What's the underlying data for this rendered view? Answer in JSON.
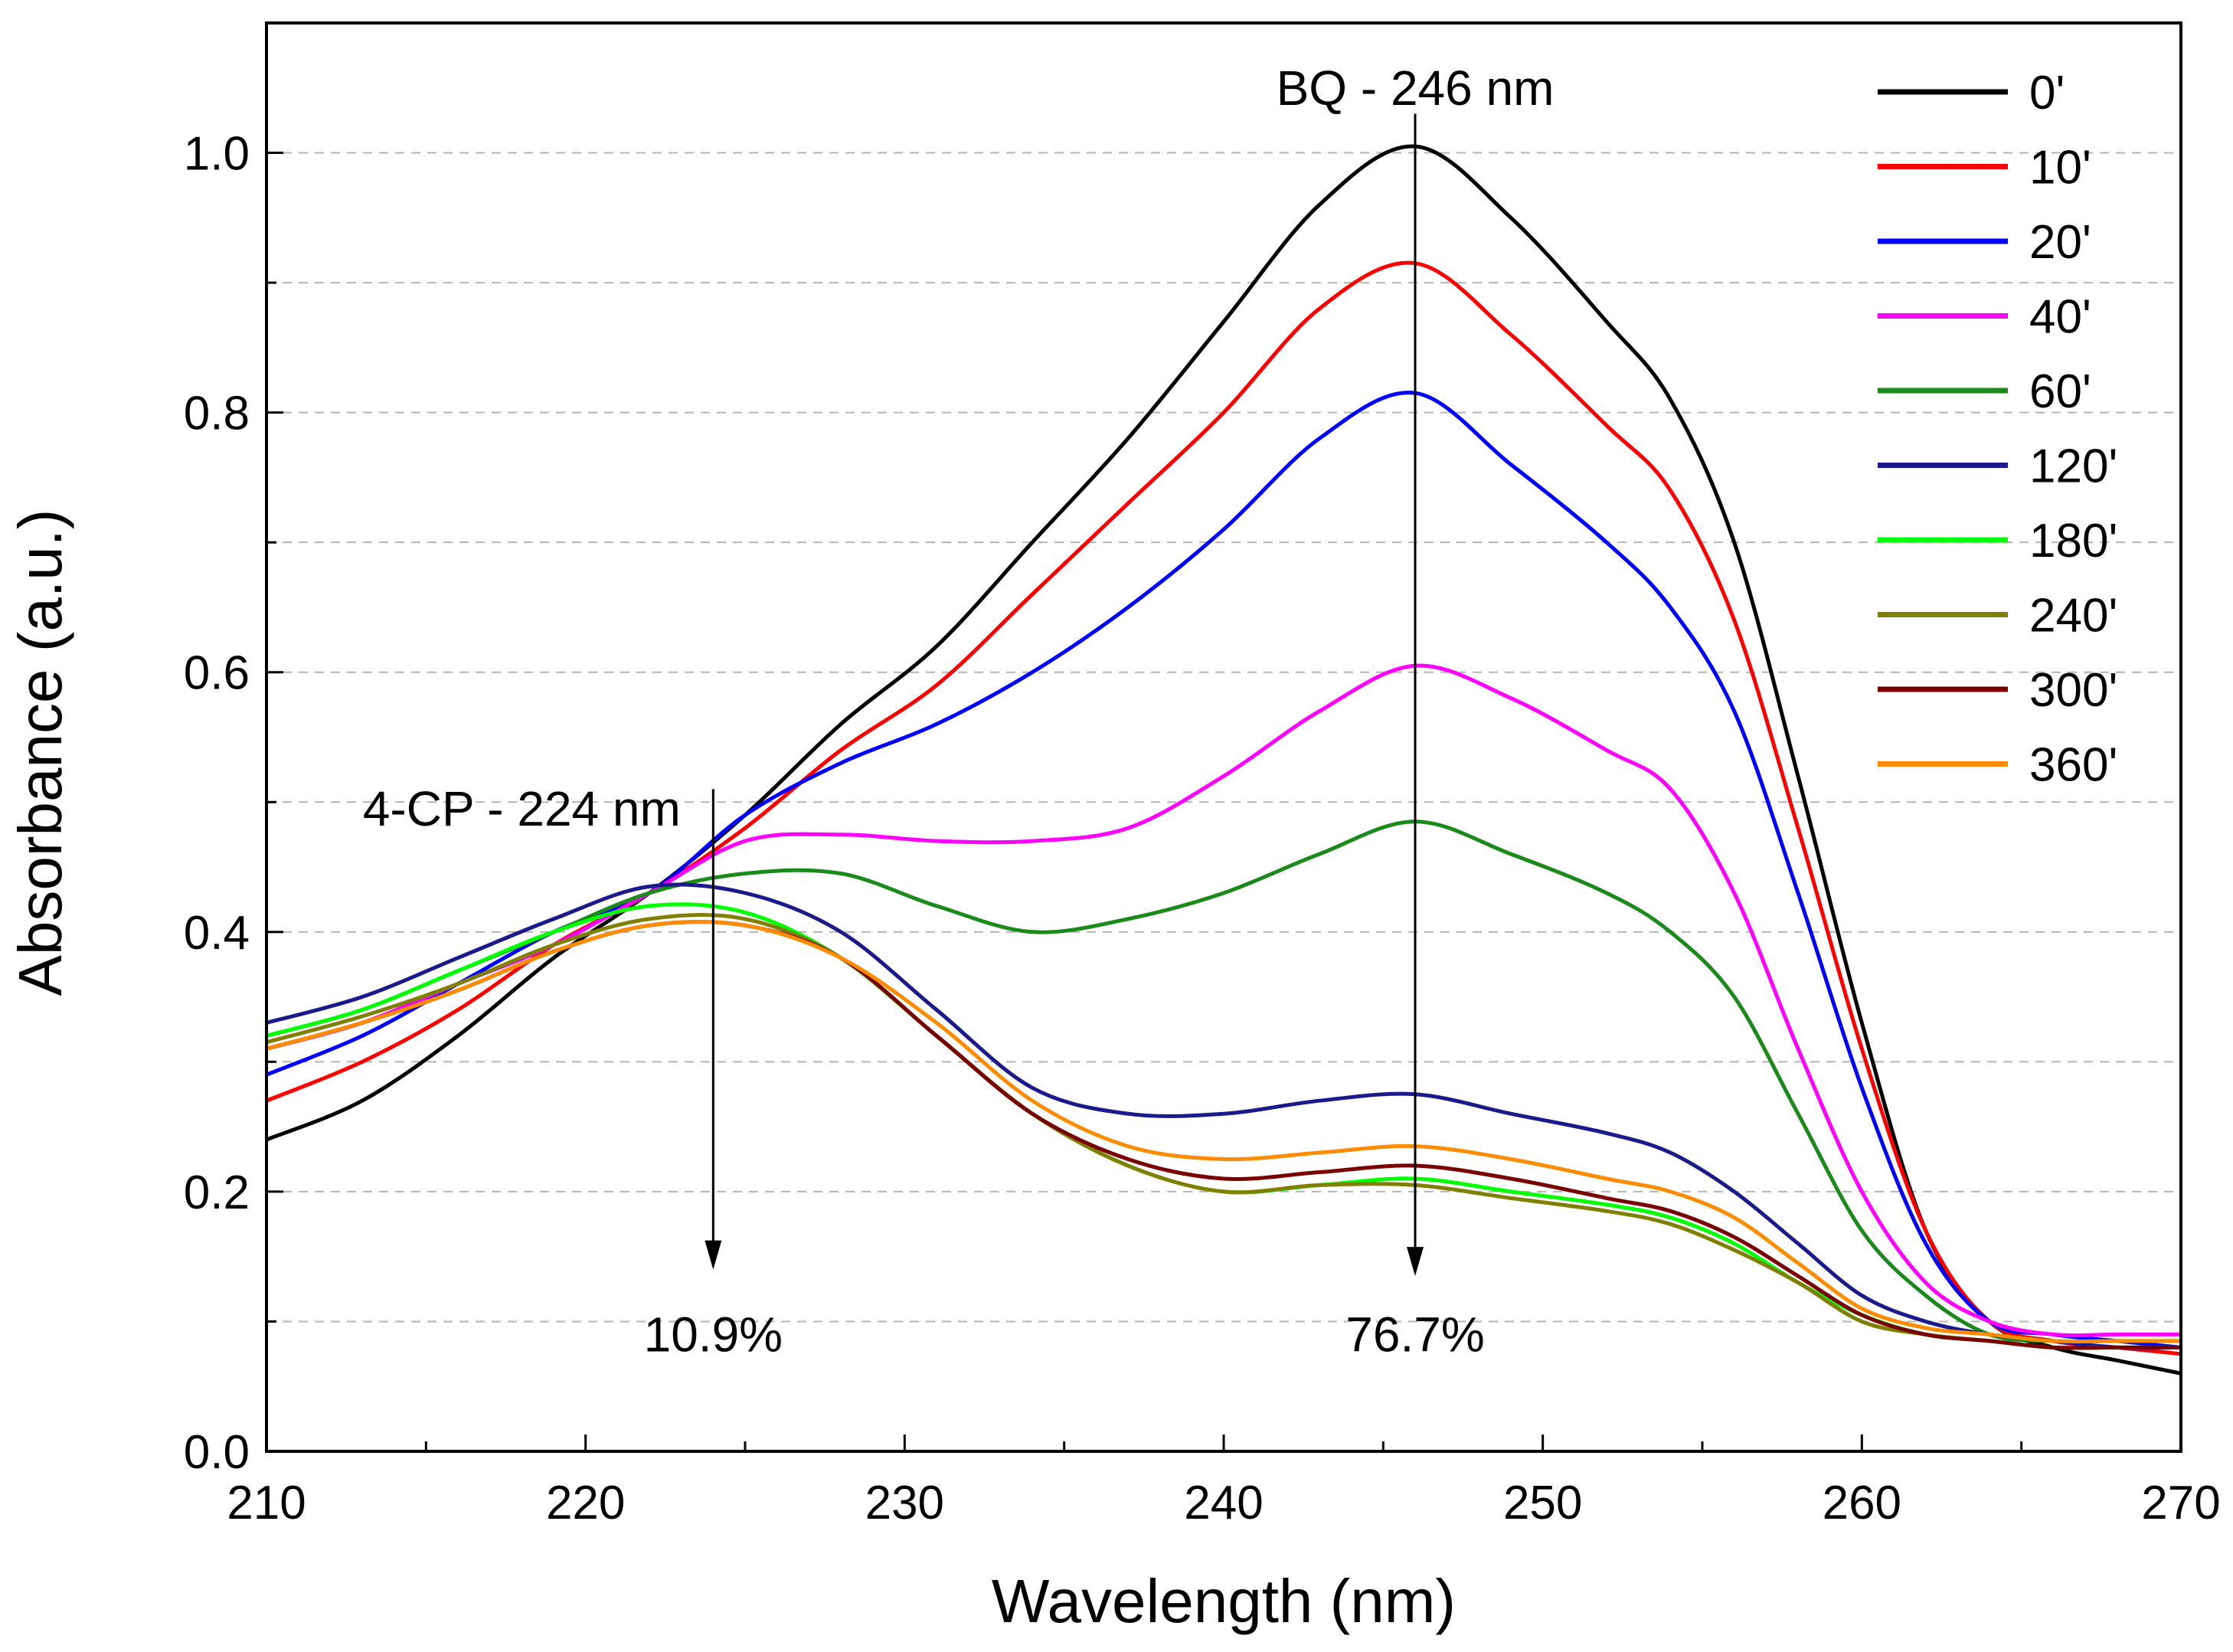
{
  "chart_data": {
    "type": "line",
    "title": "",
    "xlabel": "Wavelength (nm)",
    "ylabel": "Absorbance (a.u.)",
    "xlim": [
      210,
      270
    ],
    "ylim": [
      0.0,
      1.1
    ],
    "xticks": [
      210,
      220,
      230,
      240,
      250,
      260,
      270
    ],
    "xtick_labels": [
      "210",
      "220",
      "230",
      "240",
      "250",
      "260",
      "270"
    ],
    "yticks": [
      0.0,
      0.2,
      0.4,
      0.6,
      0.8,
      1.0
    ],
    "ytick_labels": [
      "0.0",
      "0.2",
      "0.4",
      "0.6",
      "0.8",
      "1.0"
    ],
    "grid": "horizontal dashed",
    "legend_position": "top-right",
    "series": [
      {
        "name": "0'",
        "color": "#000000",
        "x": [
          210,
          213,
          216,
          219,
          222,
          225,
          228,
          231,
          234,
          237,
          240,
          243,
          246,
          249,
          252,
          254,
          256,
          258,
          260,
          262,
          264,
          266,
          268,
          270
        ],
        "y": [
          0.24,
          0.27,
          0.32,
          0.38,
          0.43,
          0.49,
          0.56,
          0.62,
          0.7,
          0.78,
          0.87,
          0.96,
          1.005,
          0.95,
          0.87,
          0.81,
          0.7,
          0.52,
          0.33,
          0.17,
          0.1,
          0.08,
          0.07,
          0.06
        ]
      },
      {
        "name": "10'",
        "color": "#ff0000",
        "x": [
          210,
          213,
          216,
          219,
          222,
          225,
          228,
          231,
          234,
          237,
          240,
          243,
          246,
          249,
          252,
          254,
          256,
          258,
          260,
          262,
          264,
          266,
          268,
          270
        ],
        "y": [
          0.27,
          0.3,
          0.34,
          0.39,
          0.43,
          0.48,
          0.54,
          0.59,
          0.66,
          0.73,
          0.8,
          0.88,
          0.915,
          0.86,
          0.79,
          0.74,
          0.64,
          0.48,
          0.31,
          0.17,
          0.1,
          0.085,
          0.08,
          0.075
        ]
      },
      {
        "name": "20'",
        "color": "#0000ff",
        "x": [
          210,
          213,
          216,
          219,
          222,
          225,
          228,
          231,
          234,
          237,
          240,
          243,
          246,
          249,
          252,
          254,
          256,
          258,
          260,
          262,
          264,
          266,
          268,
          270
        ],
        "y": [
          0.29,
          0.32,
          0.36,
          0.4,
          0.43,
          0.49,
          0.53,
          0.56,
          0.6,
          0.65,
          0.71,
          0.78,
          0.815,
          0.76,
          0.7,
          0.65,
          0.57,
          0.43,
          0.28,
          0.16,
          0.1,
          0.09,
          0.085,
          0.08
        ]
      },
      {
        "name": "40'",
        "color": "#ff00ff",
        "x": [
          210,
          213,
          216,
          219,
          222,
          225,
          228,
          231,
          234,
          237,
          240,
          243,
          246,
          249,
          252,
          254,
          256,
          258,
          260,
          262,
          264,
          266,
          268,
          270
        ],
        "y": [
          0.31,
          0.33,
          0.36,
          0.39,
          0.43,
          0.47,
          0.475,
          0.47,
          0.47,
          0.48,
          0.52,
          0.57,
          0.605,
          0.58,
          0.54,
          0.51,
          0.43,
          0.31,
          0.2,
          0.13,
          0.1,
          0.09,
          0.09,
          0.09
        ]
      },
      {
        "name": "60'",
        "color": "#1a8a1a",
        "x": [
          210,
          213,
          216,
          219,
          222,
          225,
          228,
          231,
          234,
          237,
          240,
          243,
          246,
          249,
          252,
          254,
          256,
          258,
          260,
          262,
          264,
          266,
          268,
          270
        ],
        "y": [
          0.32,
          0.34,
          0.37,
          0.4,
          0.43,
          0.445,
          0.445,
          0.42,
          0.4,
          0.41,
          0.43,
          0.46,
          0.485,
          0.46,
          0.43,
          0.4,
          0.35,
          0.26,
          0.17,
          0.12,
          0.09,
          0.085,
          0.085,
          0.085
        ]
      },
      {
        "name": "120'",
        "color": "#1a1a8c",
        "x": [
          210,
          213,
          216,
          219,
          222,
          225,
          228,
          231,
          234,
          237,
          240,
          243,
          246,
          249,
          252,
          254,
          256,
          258,
          260,
          262,
          264,
          266,
          268,
          270
        ],
        "y": [
          0.33,
          0.35,
          0.38,
          0.41,
          0.435,
          0.43,
          0.4,
          0.34,
          0.28,
          0.26,
          0.26,
          0.27,
          0.275,
          0.26,
          0.245,
          0.23,
          0.2,
          0.16,
          0.12,
          0.1,
          0.09,
          0.085,
          0.08,
          0.08
        ]
      },
      {
        "name": "180'",
        "color": "#00ff00",
        "x": [
          210,
          213,
          216,
          219,
          222,
          225,
          228,
          231,
          234,
          237,
          240,
          243,
          246,
          249,
          252,
          254,
          256,
          258,
          260,
          262,
          264,
          266,
          268,
          270
        ],
        "y": [
          0.32,
          0.34,
          0.37,
          0.4,
          0.42,
          0.415,
          0.38,
          0.32,
          0.26,
          0.22,
          0.2,
          0.205,
          0.21,
          0.2,
          0.19,
          0.18,
          0.16,
          0.13,
          0.105,
          0.09,
          0.085,
          0.08,
          0.08,
          0.08
        ]
      },
      {
        "name": "240'",
        "color": "#808000",
        "x": [
          210,
          213,
          216,
          219,
          222,
          225,
          228,
          231,
          234,
          237,
          240,
          243,
          246,
          249,
          252,
          254,
          256,
          258,
          260,
          262,
          264,
          266,
          268,
          270
        ],
        "y": [
          0.315,
          0.335,
          0.36,
          0.39,
          0.41,
          0.41,
          0.38,
          0.32,
          0.26,
          0.22,
          0.2,
          0.205,
          0.205,
          0.195,
          0.185,
          0.175,
          0.155,
          0.13,
          0.1,
          0.09,
          0.085,
          0.08,
          0.08,
          0.08
        ]
      },
      {
        "name": "300'",
        "color": "#7a0000",
        "x": [
          210,
          213,
          216,
          219,
          222,
          225,
          228,
          231,
          234,
          237,
          240,
          243,
          246,
          249,
          252,
          254,
          256,
          258,
          260,
          262,
          264,
          266,
          268,
          270
        ],
        "y": [
          0.31,
          0.33,
          0.355,
          0.385,
          0.405,
          0.405,
          0.38,
          0.32,
          0.26,
          0.225,
          0.21,
          0.215,
          0.22,
          0.21,
          0.195,
          0.185,
          0.165,
          0.135,
          0.105,
          0.09,
          0.085,
          0.08,
          0.08,
          0.08
        ]
      },
      {
        "name": "360'",
        "color": "#ff8c00",
        "x": [
          210,
          213,
          216,
          219,
          222,
          225,
          228,
          231,
          234,
          237,
          240,
          243,
          246,
          249,
          252,
          254,
          256,
          258,
          260,
          262,
          264,
          266,
          268,
          270
        ],
        "y": [
          0.31,
          0.33,
          0.355,
          0.385,
          0.405,
          0.405,
          0.38,
          0.33,
          0.27,
          0.235,
          0.225,
          0.23,
          0.235,
          0.225,
          0.21,
          0.2,
          0.18,
          0.145,
          0.11,
          0.095,
          0.09,
          0.085,
          0.085,
          0.085
        ]
      }
    ],
    "annotations": [
      {
        "text": "BQ - 246 nm",
        "x": 246,
        "y": 1.05
      },
      {
        "text": "4-CP - 224 nm",
        "x": 218,
        "y": 0.495
      },
      {
        "text": "10.9%",
        "x": 224,
        "y": 0.09
      },
      {
        "text": "76.7%",
        "x": 246,
        "y": 0.09
      }
    ],
    "arrows": [
      {
        "label": "4-CP - 224 nm",
        "x": 224,
        "y_from": 0.51,
        "y_to": 0.14
      },
      {
        "label": "BQ - 246 nm",
        "x": 246,
        "y_from": 1.03,
        "y_to": 0.135
      }
    ]
  }
}
